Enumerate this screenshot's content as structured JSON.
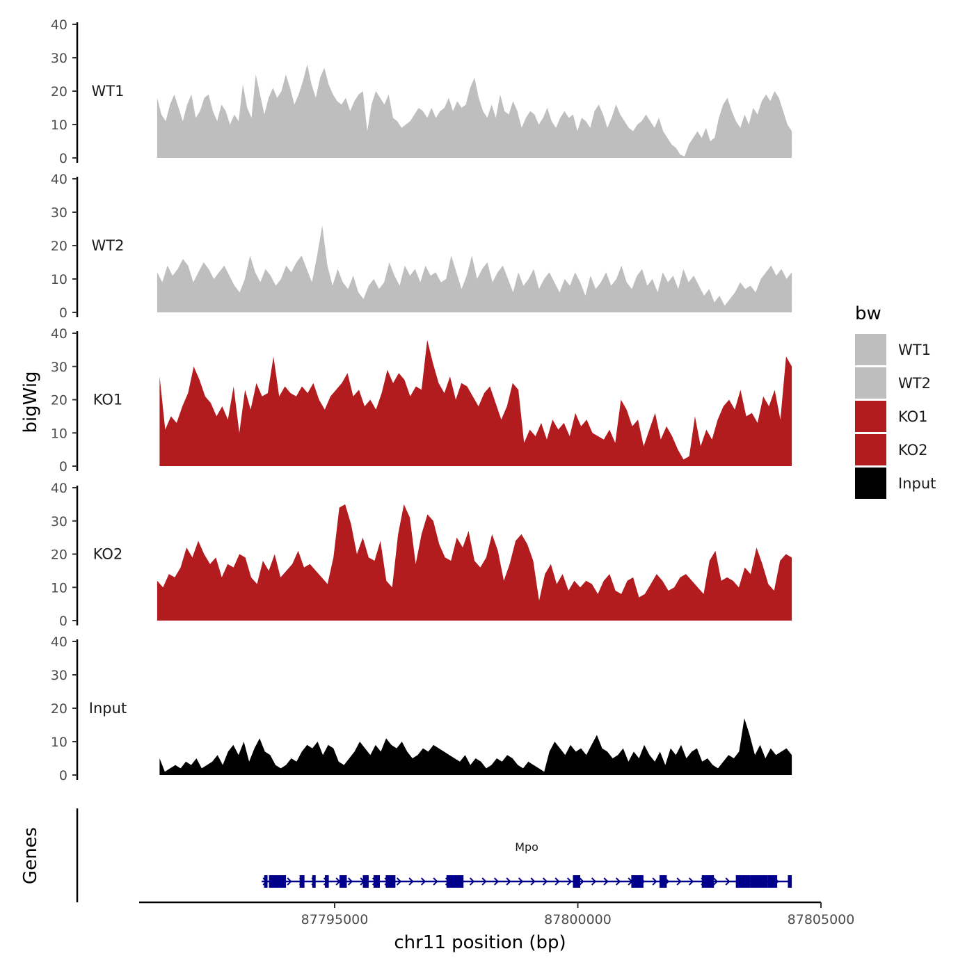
{
  "chart_data": {
    "type": "area",
    "chromosome": "chr11",
    "xlabel": "chr11 position (bp)",
    "ylabel": "bigWig",
    "gene_panel_label": "Genes",
    "xlim": [
      87790700,
      87805000
    ],
    "x_ticks": [
      87795000,
      87800000,
      87805000
    ],
    "x_tick_labels": [
      "87795000",
      "87800000",
      "87805000"
    ],
    "ylim": [
      0,
      40
    ],
    "y_ticks": [
      0,
      10,
      20,
      30,
      40
    ],
    "y_tick_labels": [
      "0",
      "10",
      "20",
      "30",
      "40"
    ],
    "legend": {
      "title": "bw",
      "position": "right",
      "entries": [
        {
          "label": "WT1",
          "color": "#bebebe"
        },
        {
          "label": "WT2",
          "color": "#bebebe"
        },
        {
          "label": "KO1",
          "color": "#b21c1f"
        },
        {
          "label": "KO2",
          "color": "#b21c1f"
        },
        {
          "label": "Input",
          "color": "#000000"
        }
      ]
    },
    "series": [
      {
        "name": "WT1",
        "color": "#bebebe",
        "x_start": 87791350,
        "x_end": 87804400,
        "values": [
          18,
          13,
          11,
          16,
          19,
          15,
          11,
          16,
          19,
          12,
          14,
          18,
          19,
          14,
          11,
          16,
          14,
          10,
          13,
          11,
          22,
          15,
          12,
          25,
          19,
          13,
          18,
          21,
          18,
          20,
          25,
          21,
          16,
          19,
          23,
          28,
          22,
          18,
          24,
          27,
          22,
          19,
          17,
          16,
          18,
          14,
          17,
          19,
          20,
          8,
          16,
          20,
          18,
          16,
          19,
          12,
          11,
          9,
          10,
          11,
          13,
          15,
          14,
          12,
          15,
          12,
          14,
          15,
          18,
          14,
          17,
          15,
          16,
          21,
          24,
          18,
          14,
          12,
          16,
          12,
          19,
          14,
          13,
          17,
          14,
          9,
          12,
          14,
          13,
          10,
          12,
          15,
          11,
          9,
          12,
          14,
          12,
          13,
          8,
          12,
          11,
          9,
          14,
          16,
          13,
          9,
          12,
          16,
          13,
          11,
          9,
          8,
          10,
          11,
          13,
          11,
          9,
          12,
          8,
          6,
          4,
          3,
          1,
          0.5,
          4,
          6,
          8,
          6,
          9,
          5,
          6,
          12,
          16,
          18,
          14,
          11,
          9,
          13,
          10,
          15,
          13,
          17,
          19,
          17,
          20,
          18,
          14,
          10,
          8
        ]
      },
      {
        "name": "WT2",
        "color": "#bebebe",
        "x_start": 87791350,
        "x_end": 87804400,
        "values": [
          12,
          9,
          14,
          11,
          13,
          16,
          14,
          9,
          12,
          15,
          13,
          10,
          12,
          14,
          11,
          8,
          6,
          10,
          17,
          12,
          9,
          13,
          11,
          8,
          10,
          14,
          12,
          15,
          17,
          13,
          9,
          17,
          26,
          14,
          8,
          13,
          9,
          7,
          11,
          6,
          4,
          8,
          10,
          7,
          9,
          15,
          11,
          8,
          14,
          11,
          13,
          9,
          14,
          11,
          12,
          9,
          10,
          17,
          12,
          7,
          11,
          17,
          10,
          13,
          15,
          9,
          12,
          14,
          10,
          6,
          12,
          8,
          10,
          13,
          7,
          10,
          12,
          9,
          6,
          10,
          8,
          12,
          9,
          5,
          11,
          7,
          9,
          12,
          8,
          10,
          14,
          9,
          7,
          11,
          13,
          8,
          10,
          6,
          12,
          9,
          11,
          7,
          13,
          9,
          11,
          8,
          5,
          7,
          3,
          5,
          2,
          4,
          6,
          9,
          7,
          8,
          6,
          10,
          12,
          14,
          11,
          13,
          10,
          12
        ]
      },
      {
        "name": "KO1",
        "color": "#b21c1f",
        "x_start": 87791400,
        "x_end": 87804400,
        "values": [
          27,
          11,
          15,
          13,
          18,
          22,
          30,
          26,
          21,
          19,
          15,
          18,
          14,
          24,
          10,
          23,
          17,
          25,
          21,
          22,
          33,
          21,
          24,
          22,
          21,
          24,
          22,
          25,
          20,
          17,
          21,
          23,
          25,
          28,
          21,
          23,
          18,
          20,
          17,
          22,
          29,
          25,
          28,
          26,
          21,
          24,
          23,
          38,
          31,
          25,
          22,
          27,
          20,
          25,
          24,
          21,
          18,
          22,
          24,
          19,
          14,
          18,
          25,
          23,
          7,
          11,
          9,
          13,
          8,
          14,
          11,
          13,
          9,
          16,
          12,
          14,
          10,
          9,
          8,
          11,
          7,
          20,
          17,
          12,
          14,
          6,
          11,
          16,
          8,
          12,
          9,
          5,
          2,
          3,
          15,
          6,
          11,
          8,
          14,
          18,
          20,
          17,
          23,
          15,
          16,
          13,
          21,
          18,
          23,
          14,
          33,
          30
        ]
      },
      {
        "name": "KO2",
        "color": "#b21c1f",
        "x_start": 87791350,
        "x_end": 87804400,
        "values": [
          12,
          10,
          14,
          13,
          16,
          22,
          19,
          24,
          20,
          17,
          19,
          13,
          17,
          16,
          20,
          19,
          13,
          11,
          18,
          15,
          20,
          13,
          15,
          17,
          21,
          16,
          17,
          15,
          13,
          11,
          19,
          34,
          35,
          29,
          20,
          25,
          19,
          18,
          24,
          12,
          10,
          26,
          35,
          31,
          17,
          26,
          32,
          30,
          23,
          19,
          18,
          25,
          22,
          27,
          18,
          16,
          19,
          26,
          21,
          12,
          17,
          24,
          26,
          23,
          18,
          6,
          14,
          17,
          11,
          14,
          9,
          12,
          10,
          12,
          11,
          8,
          12,
          14,
          9,
          8,
          12,
          13,
          7,
          8,
          11,
          14,
          12,
          9,
          10,
          13,
          14,
          12,
          10,
          8,
          18,
          21,
          12,
          13,
          12,
          10,
          16,
          14,
          22,
          17,
          11,
          9,
          18,
          20,
          19
        ]
      },
      {
        "name": "Input",
        "color": "#000000",
        "x_start": 87791400,
        "x_end": 87804400,
        "values": [
          5,
          1,
          2,
          3,
          2,
          4,
          3,
          5,
          2,
          3,
          4,
          6,
          3,
          7,
          9,
          6,
          10,
          4,
          8,
          11,
          7,
          6,
          3,
          2,
          3,
          5,
          4,
          7,
          9,
          8,
          10,
          6,
          9,
          8,
          4,
          3,
          5,
          7,
          10,
          8,
          6,
          9,
          7,
          11,
          9,
          8,
          10,
          7,
          5,
          6,
          8,
          7,
          9,
          8,
          7,
          6,
          5,
          4,
          6,
          3,
          5,
          4,
          2,
          3,
          5,
          4,
          6,
          5,
          3,
          2,
          4,
          3,
          2,
          1,
          7,
          10,
          8,
          6,
          9,
          7,
          8,
          6,
          9,
          12,
          8,
          7,
          5,
          6,
          8,
          4,
          7,
          5,
          9,
          6,
          4,
          7,
          3,
          8,
          6,
          9,
          5,
          7,
          8,
          4,
          5,
          3,
          2,
          4,
          6,
          5,
          7,
          17,
          12,
          6,
          9,
          5,
          8,
          6,
          7,
          8,
          6
        ]
      }
    ],
    "genes": [
      {
        "name": "Mpo",
        "strand": "+",
        "tx_start": 87793500,
        "tx_end": 87804400,
        "exons": [
          [
            87793550,
            87793620
          ],
          [
            87793650,
            87794000
          ],
          [
            87794280,
            87794380
          ],
          [
            87794540,
            87794610
          ],
          [
            87794800,
            87794880
          ],
          [
            87795100,
            87795250
          ],
          [
            87795580,
            87795700
          ],
          [
            87795800,
            87795930
          ],
          [
            87796050,
            87796250
          ],
          [
            87797300,
            87797650
          ],
          [
            87799900,
            87800050
          ],
          [
            87801100,
            87801350
          ],
          [
            87801680,
            87801830
          ],
          [
            87802550,
            87802800
          ],
          [
            87803250,
            87803550
          ],
          [
            87803550,
            87803900
          ],
          [
            87803900,
            87804100
          ],
          [
            87804320,
            87804400
          ]
        ]
      }
    ]
  }
}
